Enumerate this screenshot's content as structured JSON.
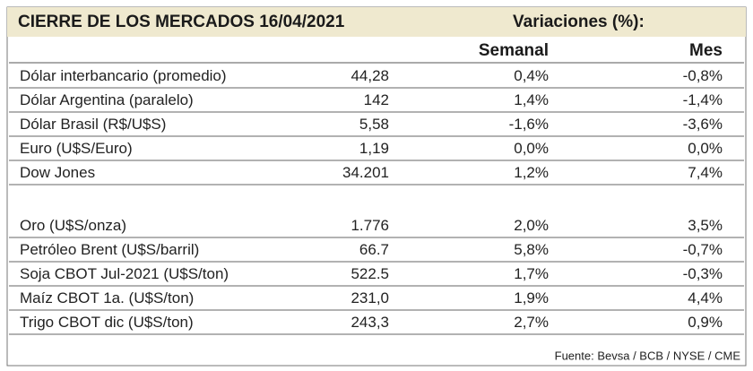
{
  "header": {
    "title": "CIERRE DE LOS MERCADOS 16/04/2021",
    "subtitle": "Variaciones (%):"
  },
  "table": {
    "columns": [
      "Semanal",
      "Mes"
    ],
    "groups": [
      [
        [
          "Dólar interbancario (promedio)",
          "44,28",
          "0,4%",
          "-0,8%"
        ],
        [
          "Dólar Argentina (paralelo)",
          "142",
          "1,4%",
          "-1,4%"
        ],
        [
          "Dólar Brasil (R$/U$S)",
          "5,58",
          "-1,6%",
          "-3,6%"
        ],
        [
          "Euro (U$S/Euro)",
          "1,19",
          "0,0%",
          "0,0%"
        ],
        [
          "Dow Jones",
          "34.201",
          "1,2%",
          "7,4%"
        ]
      ],
      [
        [
          "Oro (U$S/onza)",
          "1.776",
          "2,0%",
          "3,5%"
        ],
        [
          "Petróleo Brent (U$S/barril)",
          "66.7",
          "5,8%",
          "-0,7%"
        ],
        [
          "Soja CBOT Jul-2021 (U$S/ton)",
          "522.5",
          "1,7%",
          "-0,3%"
        ],
        [
          "Maíz CBOT 1a. (U$S/ton)",
          "231,0",
          "1,9%",
          "4,4%"
        ],
        [
          "Trigo CBOT dic (U$S/ton)",
          "243,3",
          "2,7%",
          "0,9%"
        ]
      ]
    ]
  },
  "footer": {
    "source": "Fuente: Bevsa / BCB / NYSE / CME"
  }
}
